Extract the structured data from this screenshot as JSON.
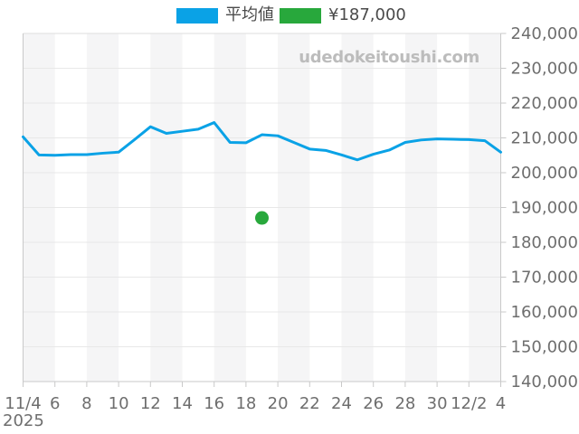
{
  "watermark": "udedokeitoushi.com",
  "legend": {
    "items": [
      {
        "label": "平均値",
        "color": "#0aa2e6"
      },
      {
        "label": "¥187,000",
        "color": "#28a83c"
      }
    ]
  },
  "chart_data": {
    "type": "line",
    "title": "",
    "xlabel": "",
    "ylabel": "",
    "year_label": "2025",
    "x": [
      "11/4",
      "11/5",
      "11/6",
      "11/7",
      "11/8",
      "11/9",
      "11/10",
      "11/11",
      "11/12",
      "11/13",
      "11/14",
      "11/15",
      "11/16",
      "11/17",
      "11/18",
      "11/19",
      "11/20",
      "11/21",
      "11/22",
      "11/23",
      "11/24",
      "11/25",
      "11/26",
      "11/27",
      "11/28",
      "11/29",
      "11/30",
      "12/1",
      "12/2",
      "12/3",
      "12/4"
    ],
    "x_tick_labels": [
      "11/4",
      "6",
      "8",
      "10",
      "12",
      "14",
      "16",
      "18",
      "20",
      "22",
      "24",
      "26",
      "28",
      "30",
      "12/2",
      "4"
    ],
    "x_tick_days": [
      0,
      2,
      4,
      6,
      8,
      10,
      12,
      14,
      16,
      18,
      20,
      22,
      24,
      26,
      28,
      30
    ],
    "ylim": [
      140000,
      240000
    ],
    "y_tick_step": 10000,
    "y_tick_labels": [
      "240,000",
      "230,000",
      "220,000",
      "210,000",
      "200,000",
      "190,000",
      "180,000",
      "170,000",
      "160,000",
      "150,000",
      "140,000"
    ],
    "grid": "horizontal",
    "legend_position": "top",
    "series": [
      {
        "name": "平均値",
        "type": "line",
        "color": "#0aa2e6",
        "values": [
          210300,
          205100,
          205000,
          205200,
          205200,
          205600,
          205900,
          209500,
          213200,
          211300,
          211900,
          212500,
          214400,
          208700,
          208600,
          210900,
          210600,
          208700,
          206800,
          206400,
          205100,
          203700,
          205300,
          206500,
          208700,
          209400,
          209700,
          209600,
          209500,
          209200,
          205900
        ]
      },
      {
        "name": "¥187,000",
        "type": "scatter",
        "color": "#28a83c",
        "points": [
          {
            "x": "11/19",
            "y": 187000
          }
        ]
      }
    ],
    "style": {
      "band_fill": "#f5f5f6",
      "grid_color": "#e8e8e8",
      "axis_color": "#c9c9c9",
      "border_top_color": "#dedede",
      "label_color": "#6e6e6e"
    }
  }
}
